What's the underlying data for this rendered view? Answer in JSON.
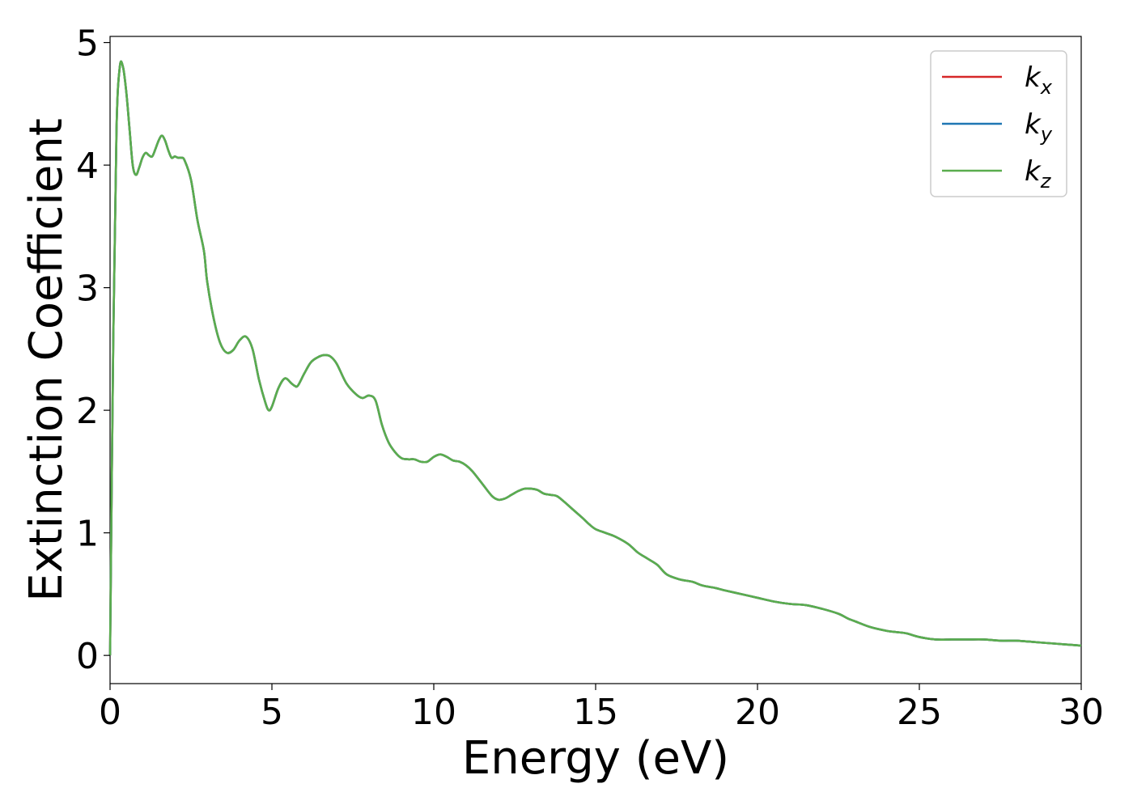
{
  "chart_data": {
    "type": "line",
    "title": "",
    "xlabel": "Energy (eV)",
    "ylabel": "Extinction Coefficient",
    "xlim": [
      0,
      30
    ],
    "ylim": [
      -0.23,
      5.05
    ],
    "xticks": [
      0,
      5,
      10,
      15,
      20,
      25,
      30
    ],
    "yticks": [
      0,
      1,
      2,
      3,
      4,
      5
    ],
    "grid": false,
    "legend_position": "top-right",
    "x": [
      0,
      0.1,
      0.2,
      0.3,
      0.4,
      0.5,
      0.6,
      0.7,
      0.8,
      0.9,
      1.0,
      1.1,
      1.2,
      1.3,
      1.4,
      1.5,
      1.6,
      1.7,
      1.8,
      1.9,
      2.0,
      2.1,
      2.2,
      2.3,
      2.5,
      2.7,
      2.9,
      3.0,
      3.2,
      3.4,
      3.6,
      3.8,
      4.0,
      4.2,
      4.4,
      4.6,
      4.8,
      4.9,
      5.0,
      5.2,
      5.4,
      5.6,
      5.7,
      5.8,
      6.0,
      6.2,
      6.4,
      6.6,
      6.8,
      7.0,
      7.3,
      7.6,
      7.8,
      8.0,
      8.2,
      8.4,
      8.6,
      8.8,
      9.0,
      9.2,
      9.4,
      9.6,
      9.8,
      10.0,
      10.2,
      10.4,
      10.6,
      10.8,
      11.0,
      11.2,
      11.5,
      11.8,
      12.0,
      12.2,
      12.4,
      12.6,
      12.8,
      13.0,
      13.2,
      13.4,
      13.6,
      13.8,
      14.0,
      14.3,
      14.6,
      14.8,
      15.0,
      15.3,
      15.6,
      16.0,
      16.3,
      16.6,
      16.9,
      17.2,
      17.6,
      18.0,
      18.3,
      18.7,
      19.0,
      19.5,
      20.0,
      20.5,
      21.0,
      21.5,
      22.0,
      22.5,
      22.8,
      23.0,
      23.5,
      24.0,
      24.3,
      24.6,
      25.0,
      25.5,
      26.0,
      26.5,
      27.0,
      27.5,
      28.0,
      28.5,
      29.0,
      29.5,
      30.0
    ],
    "series": [
      {
        "name": "k_x",
        "label_base": "k",
        "label_sub": "x",
        "color": "#d62728",
        "values": [
          0,
          2.6,
          4.3,
          4.8,
          4.8,
          4.6,
          4.3,
          4.0,
          3.92,
          3.98,
          4.06,
          4.1,
          4.08,
          4.07,
          4.13,
          4.2,
          4.24,
          4.2,
          4.12,
          4.06,
          4.07,
          4.06,
          4.06,
          4.04,
          3.88,
          3.55,
          3.3,
          3.05,
          2.75,
          2.55,
          2.47,
          2.49,
          2.57,
          2.6,
          2.5,
          2.25,
          2.06,
          2.0,
          2.03,
          2.18,
          2.26,
          2.22,
          2.2,
          2.2,
          2.3,
          2.39,
          2.43,
          2.45,
          2.44,
          2.38,
          2.22,
          2.13,
          2.1,
          2.12,
          2.08,
          1.88,
          1.74,
          1.66,
          1.61,
          1.6,
          1.6,
          1.58,
          1.58,
          1.62,
          1.64,
          1.62,
          1.59,
          1.58,
          1.55,
          1.5,
          1.4,
          1.3,
          1.27,
          1.28,
          1.31,
          1.34,
          1.36,
          1.36,
          1.35,
          1.32,
          1.31,
          1.3,
          1.26,
          1.19,
          1.12,
          1.07,
          1.03,
          1.0,
          0.97,
          0.91,
          0.84,
          0.79,
          0.74,
          0.66,
          0.62,
          0.6,
          0.57,
          0.55,
          0.53,
          0.5,
          0.47,
          0.44,
          0.42,
          0.41,
          0.38,
          0.34,
          0.3,
          0.28,
          0.23,
          0.2,
          0.19,
          0.18,
          0.15,
          0.13,
          0.13,
          0.13,
          0.13,
          0.12,
          0.12,
          0.11,
          0.1,
          0.09,
          0.08
        ]
      },
      {
        "name": "k_y",
        "label_base": "k",
        "label_sub": "y",
        "color": "#1f77b4",
        "values": [
          0,
          2.6,
          4.3,
          4.8,
          4.8,
          4.6,
          4.3,
          4.0,
          3.92,
          3.98,
          4.06,
          4.1,
          4.08,
          4.07,
          4.13,
          4.2,
          4.24,
          4.2,
          4.12,
          4.06,
          4.07,
          4.06,
          4.06,
          4.04,
          3.88,
          3.55,
          3.3,
          3.05,
          2.75,
          2.55,
          2.47,
          2.49,
          2.57,
          2.6,
          2.5,
          2.25,
          2.06,
          2.0,
          2.03,
          2.18,
          2.26,
          2.22,
          2.2,
          2.2,
          2.3,
          2.39,
          2.43,
          2.45,
          2.44,
          2.38,
          2.22,
          2.13,
          2.1,
          2.12,
          2.08,
          1.88,
          1.74,
          1.66,
          1.61,
          1.6,
          1.6,
          1.58,
          1.58,
          1.62,
          1.64,
          1.62,
          1.59,
          1.58,
          1.55,
          1.5,
          1.4,
          1.3,
          1.27,
          1.28,
          1.31,
          1.34,
          1.36,
          1.36,
          1.35,
          1.32,
          1.31,
          1.3,
          1.26,
          1.19,
          1.12,
          1.07,
          1.03,
          1.0,
          0.97,
          0.91,
          0.84,
          0.79,
          0.74,
          0.66,
          0.62,
          0.6,
          0.57,
          0.55,
          0.53,
          0.5,
          0.47,
          0.44,
          0.42,
          0.41,
          0.38,
          0.34,
          0.3,
          0.28,
          0.23,
          0.2,
          0.19,
          0.18,
          0.15,
          0.13,
          0.13,
          0.13,
          0.13,
          0.12,
          0.12,
          0.11,
          0.1,
          0.09,
          0.08
        ]
      },
      {
        "name": "k_z",
        "label_base": "k",
        "label_sub": "z",
        "color": "#5aad4e",
        "values": [
          0,
          2.6,
          4.3,
          4.8,
          4.8,
          4.6,
          4.3,
          4.0,
          3.92,
          3.98,
          4.06,
          4.1,
          4.08,
          4.07,
          4.13,
          4.2,
          4.24,
          4.2,
          4.12,
          4.06,
          4.07,
          4.06,
          4.06,
          4.04,
          3.88,
          3.55,
          3.3,
          3.05,
          2.75,
          2.55,
          2.47,
          2.49,
          2.57,
          2.6,
          2.5,
          2.25,
          2.06,
          2.0,
          2.03,
          2.18,
          2.26,
          2.22,
          2.2,
          2.2,
          2.3,
          2.39,
          2.43,
          2.45,
          2.44,
          2.38,
          2.22,
          2.13,
          2.1,
          2.12,
          2.08,
          1.88,
          1.74,
          1.66,
          1.61,
          1.6,
          1.6,
          1.58,
          1.58,
          1.62,
          1.64,
          1.62,
          1.59,
          1.58,
          1.55,
          1.5,
          1.4,
          1.3,
          1.27,
          1.28,
          1.31,
          1.34,
          1.36,
          1.36,
          1.35,
          1.32,
          1.31,
          1.3,
          1.26,
          1.19,
          1.12,
          1.07,
          1.03,
          1.0,
          0.97,
          0.91,
          0.84,
          0.79,
          0.74,
          0.66,
          0.62,
          0.6,
          0.57,
          0.55,
          0.53,
          0.5,
          0.47,
          0.44,
          0.42,
          0.41,
          0.38,
          0.34,
          0.3,
          0.28,
          0.23,
          0.2,
          0.19,
          0.18,
          0.15,
          0.13,
          0.13,
          0.13,
          0.13,
          0.12,
          0.12,
          0.11,
          0.1,
          0.09,
          0.08
        ]
      }
    ]
  }
}
